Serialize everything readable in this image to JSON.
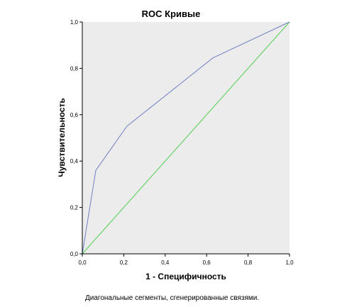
{
  "chart_data": {
    "type": "line",
    "title": "ROC Кривые",
    "xlabel": "1 - Специфичность",
    "ylabel": "Чувствительность",
    "xlim": [
      0,
      1
    ],
    "ylim": [
      0,
      1
    ],
    "xticks": [
      "0,0",
      "0,2",
      "0,4",
      "0,6",
      "0,8",
      "1,0"
    ],
    "yticks": [
      "0,0",
      "0,2",
      "0,4",
      "0,6",
      "0,8",
      "1,0"
    ],
    "grid": false,
    "series": [
      {
        "color": "#6f7fc2",
        "x": [
          0.0,
          0.065,
          0.215,
          0.63,
          1.0
        ],
        "y": [
          0.0,
          0.36,
          0.55,
          0.845,
          1.0
        ]
      },
      {
        "color": "#4fcf4f",
        "x": [
          0.0,
          1.0
        ],
        "y": [
          0.0,
          1.0
        ]
      }
    ],
    "footnote": "Диагональные сегменты, сгенерированные связями."
  },
  "colors": {
    "plot_background": "#ececec",
    "axis": "#000000"
  }
}
